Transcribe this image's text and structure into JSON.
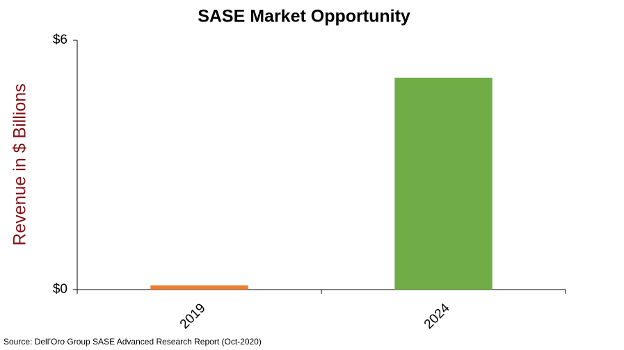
{
  "chart_data": {
    "type": "bar",
    "title": "SASE Market Opportunity",
    "y_label": "Revenue in $ Billions",
    "categories": [
      "2019",
      "2024"
    ],
    "values": [
      0.1,
      5.1
    ],
    "colors": [
      "#ed7d31",
      "#70ad47"
    ],
    "ylim": [
      0,
      6
    ],
    "yticks": [
      {
        "value": 0,
        "label": "$0"
      },
      {
        "value": 6,
        "label": "$6"
      }
    ],
    "grid": false,
    "source": "Source: Dell’Oro Group SASE Advanced Research Report (Oct-2020)"
  }
}
